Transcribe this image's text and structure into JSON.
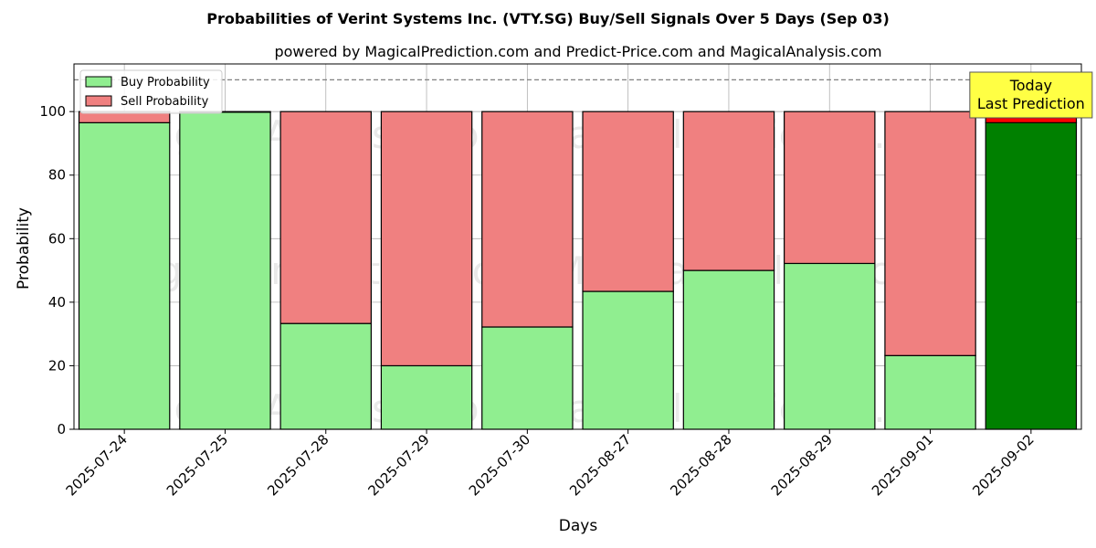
{
  "chart_data": {
    "type": "bar",
    "stacked": true,
    "title": "Probabilities of Verint Systems Inc. (VTY.SG) Buy/Sell Signals Over 5 Days (Sep 03)",
    "subtitle": "powered by MagicalPrediction.com and Predict-Price.com and MagicalAnalysis.com",
    "xlabel": "Days",
    "ylabel": "Probability",
    "ylim": [
      0,
      115
    ],
    "yticks": [
      0,
      20,
      40,
      60,
      80,
      100
    ],
    "grid": true,
    "categories": [
      "2025-07-24",
      "2025-07-25",
      "2025-07-28",
      "2025-07-29",
      "2025-07-30",
      "2025-08-27",
      "2025-08-28",
      "2025-08-29",
      "2025-09-01",
      "2025-09-02"
    ],
    "series": [
      {
        "name": "Buy Probability",
        "color": "#90ee90",
        "values": [
          96.5,
          99.8,
          33.3,
          20.0,
          32.2,
          43.4,
          50.0,
          52.2,
          23.2,
          96.5
        ]
      },
      {
        "name": "Sell Probability",
        "color": "#f08080",
        "values": [
          3.5,
          0.2,
          66.7,
          80.0,
          67.8,
          56.6,
          50.0,
          47.8,
          76.8,
          3.5
        ]
      }
    ],
    "highlight": {
      "index": 9,
      "buy_color": "#008000",
      "sell_color": "#ff0000"
    },
    "reference_line": {
      "y": 110,
      "style": "dashed",
      "color": "#808080"
    },
    "annotation": {
      "lines": [
        "Today",
        "Last Prediction"
      ],
      "bg_color": "#ffff44"
    },
    "legend": {
      "position": "top-left"
    },
    "watermarks": [
      "MagicalAnalysis.com",
      "MagicalPrediction.com"
    ]
  }
}
